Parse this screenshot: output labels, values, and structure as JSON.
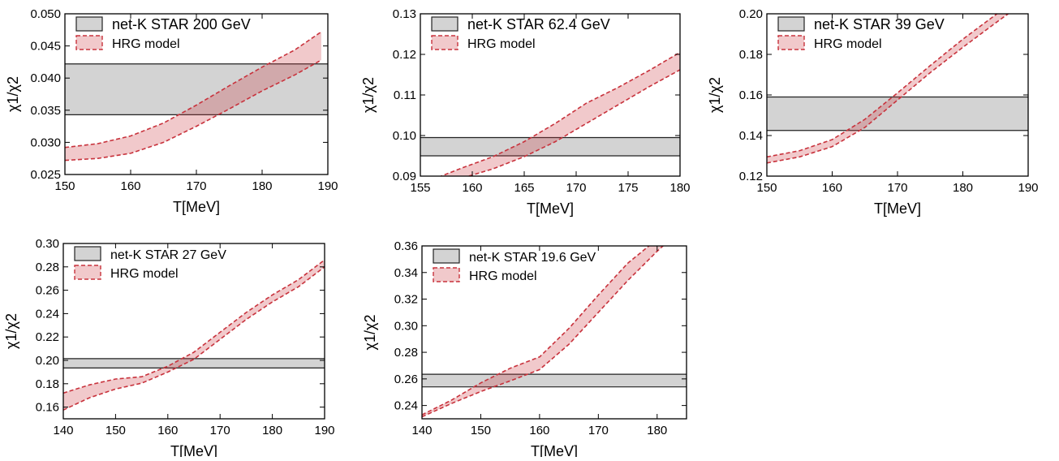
{
  "chart_data": [
    {
      "type": "area",
      "xlabel": "T[MeV]",
      "ylabel": "χ1/χ2",
      "xlim": [
        150,
        190
      ],
      "ylim": [
        0.025,
        0.05
      ],
      "xticks": [
        "150",
        "160",
        "170",
        "180",
        "190"
      ],
      "yticks": [
        "0.025",
        "0.030",
        "0.035",
        "0.040",
        "0.045",
        "0.050"
      ],
      "legend": [
        "net-K STAR 200 GeV",
        "HRG model"
      ],
      "star_band": [
        0.0343,
        0.0422
      ],
      "hrg_band": {
        "T": [
          150,
          155,
          160,
          165,
          170,
          175,
          180,
          185,
          189
        ],
        "lower": [
          0.0272,
          0.0275,
          0.0283,
          0.03,
          0.0325,
          0.0352,
          0.038,
          0.0405,
          0.0428
        ],
        "upper": [
          0.0292,
          0.0298,
          0.031,
          0.033,
          0.0358,
          0.0388,
          0.0417,
          0.0444,
          0.0472
        ]
      }
    },
    {
      "type": "area",
      "xlabel": "T[MeV]",
      "ylabel": "χ1/χ2",
      "xlim": [
        155,
        180
      ],
      "ylim": [
        0.09,
        0.13
      ],
      "xticks": [
        "155",
        "160",
        "165",
        "170",
        "175",
        "180"
      ],
      "yticks": [
        "0.09",
        "0.10",
        "0.11",
        "0.12",
        "0.13"
      ],
      "legend": [
        "net-K STAR 62.4 GeV",
        "HRG model"
      ],
      "star_band": [
        0.095,
        0.0995
      ],
      "hrg_band": {
        "T": [
          155,
          159,
          162,
          165,
          168,
          171,
          174,
          177,
          180
        ],
        "lower": [
          0.0855,
          0.0895,
          0.0918,
          0.0948,
          0.0985,
          0.103,
          0.1075,
          0.112,
          0.1162
        ],
        "upper": [
          0.088,
          0.092,
          0.0948,
          0.0985,
          0.103,
          0.108,
          0.1118,
          0.116,
          0.1205
        ]
      }
    },
    {
      "type": "area",
      "xlabel": "T[MeV]",
      "ylabel": "χ1/χ2",
      "xlim": [
        150,
        190
      ],
      "ylim": [
        0.12,
        0.2
      ],
      "xticks": [
        "150",
        "160",
        "170",
        "180",
        "190"
      ],
      "yticks": [
        "0.12",
        "0.14",
        "0.16",
        "0.18",
        "0.20"
      ],
      "legend": [
        "net-K STAR 39 GeV",
        "HRG model"
      ],
      "star_band": [
        0.1425,
        0.159
      ],
      "hrg_band": {
        "T": [
          150,
          155,
          160,
          165,
          170,
          175,
          180,
          185,
          188
        ],
        "lower": [
          0.1265,
          0.1295,
          0.1345,
          0.144,
          0.1575,
          0.171,
          0.1835,
          0.1955,
          0.2025
        ],
        "upper": [
          0.1295,
          0.1325,
          0.138,
          0.148,
          0.161,
          0.1745,
          0.1875,
          0.1995,
          0.2065
        ]
      }
    },
    {
      "type": "area",
      "xlabel": "T[MeV]",
      "ylabel": "χ1/χ2",
      "xlim": [
        140,
        190
      ],
      "ylim": [
        0.15,
        0.3
      ],
      "xticks": [
        "140",
        "150",
        "160",
        "170",
        "180",
        "190"
      ],
      "yticks": [
        "0.16",
        "0.18",
        "0.20",
        "0.22",
        "0.24",
        "0.26",
        "0.28",
        "0.30"
      ],
      "legend": [
        "net-K STAR 27 GeV",
        "HRG model"
      ],
      "star_band": [
        0.1935,
        0.2015
      ],
      "hrg_band": {
        "T": [
          140,
          145,
          150,
          155,
          160,
          165,
          170,
          175,
          180,
          185,
          190
        ],
        "lower": [
          0.1575,
          0.168,
          0.1755,
          0.1805,
          0.19,
          0.201,
          0.218,
          0.235,
          0.25,
          0.263,
          0.28
        ],
        "upper": [
          0.172,
          0.179,
          0.184,
          0.186,
          0.195,
          0.207,
          0.224,
          0.241,
          0.256,
          0.269,
          0.286
        ]
      }
    },
    {
      "type": "area",
      "xlabel": "T[MeV]",
      "ylabel": "χ1/χ2",
      "xlim": [
        140,
        185
      ],
      "ylim": [
        0.23,
        0.36
      ],
      "xticks": [
        "140",
        "150",
        "160",
        "170",
        "180"
      ],
      "yticks": [
        "0.24",
        "0.26",
        "0.28",
        "0.30",
        "0.32",
        "0.34",
        "0.36"
      ],
      "legend": [
        "net-K STAR 19.6 GeV",
        "HRG model"
      ],
      "star_band": [
        0.254,
        0.2635
      ],
      "hrg_band": {
        "T": [
          140,
          145,
          150,
          155,
          160,
          165,
          170,
          175,
          180,
          182
        ],
        "lower": [
          0.2315,
          0.2415,
          0.2505,
          0.2585,
          0.267,
          0.286,
          0.31,
          0.334,
          0.356,
          0.364
        ],
        "upper": [
          0.233,
          0.244,
          0.257,
          0.268,
          0.2765,
          0.298,
          0.323,
          0.347,
          0.365,
          0.372
        ]
      }
    }
  ]
}
